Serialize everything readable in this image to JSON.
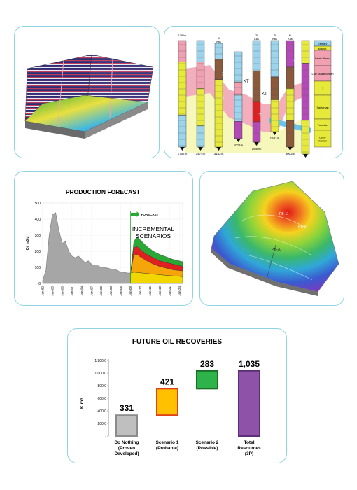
{
  "well_correlation": {
    "well_tops": [
      "1386m",
      "",
      "Ki\nKas",
      "",
      "Ti\nKas",
      "Ti\nKas",
      "Ki\nKas"
    ],
    "well_depths": [
      "1707m",
      "3474m",
      "3142m",
      "1011m",
      "1940m",
      "1581m",
      "3003m",
      "3425m"
    ],
    "kt_labels": [
      "KT",
      "KT"
    ],
    "question": "?",
    "strat_labels": [
      "Tertiary",
      "Maastr.",
      "Santo Blanca",
      "Late Maastrichtian",
      "?",
      "Santonian",
      "Turonian",
      "Ceno-\nmanian"
    ]
  },
  "production": {
    "title": "PRODUCTION FORECAST",
    "ylabel": "Oil m3/d",
    "forecast_label": "FORECAST",
    "incremental_label_1": "INCREMENTAL",
    "incremental_label_2": "SCENARIOS",
    "colors": {
      "history": "#a6a6a6",
      "green": "#2aa835",
      "red": "#e02020",
      "orange": "#f5a50a",
      "yellow": "#f2d600"
    },
    "chart_data": {
      "type": "area",
      "title": "PRODUCTION FORECAST",
      "ylabel": "Oil m3/d",
      "ylim": [
        0,
        500
      ],
      "yticks": [
        "0",
        "100",
        "200",
        "300",
        "400",
        "500"
      ],
      "xticks": [
        "Jan-82",
        "Jan-85",
        "Jan-88",
        "Jan-91",
        "Jan-94",
        "Jan-97",
        "Jan-00",
        "Jan-03",
        "Jan-06",
        "Jan-09",
        "Jan-12",
        "Jan-15",
        "Jan-18",
        "Jan-21",
        "Jan-24"
      ],
      "history": {
        "x": [
          1982,
          1983,
          1984,
          1985,
          1986,
          1987,
          1988,
          1989,
          1990,
          1991,
          1992,
          1993,
          1994,
          1995,
          1996,
          1997,
          1998,
          1999,
          2000,
          2001,
          2002,
          2003,
          2004,
          2005,
          2006,
          2007,
          2008,
          2009
        ],
        "y": [
          20,
          80,
          300,
          430,
          440,
          330,
          250,
          260,
          200,
          170,
          160,
          170,
          150,
          130,
          140,
          120,
          110,
          110,
          100,
          100,
          95,
          90,
          90,
          80,
          70,
          70,
          65,
          65
        ]
      },
      "forecast": {
        "x": [
          2009,
          2010,
          2011,
          2012,
          2014,
          2016,
          2018,
          2020,
          2022,
          2024,
          2025
        ],
        "scenario_total": [
          65,
          260,
          290,
          270,
          230,
          200,
          180,
          165,
          150,
          140,
          135
        ],
        "scenario_red": [
          65,
          220,
          230,
          210,
          180,
          160,
          140,
          130,
          120,
          110,
          105
        ],
        "scenario_orange": [
          65,
          175,
          180,
          165,
          140,
          120,
          105,
          95,
          85,
          80,
          78
        ],
        "base": [
          65,
          70,
          68,
          66,
          62,
          58,
          54,
          50,
          47,
          44,
          42
        ]
      }
    }
  },
  "map3d": {
    "well_labels": [
      "PB-11",
      "PB-20",
      "PB-9"
    ]
  },
  "recoveries": {
    "title": "FUTURE OIL RECOVERIES",
    "ylabel": "K m3",
    "chart_data": {
      "type": "bar",
      "title": "FUTURE OIL RECOVERIES",
      "ylabel": "K m3",
      "ylim": [
        0,
        1200
      ],
      "yticks": [
        "-",
        "200.0",
        "400.0",
        "600.0",
        "800.0",
        "1,000.0",
        "1,200.0"
      ],
      "categories": [
        "Do Nothing (Proven Developed)",
        "Scenario 1 (Probable)",
        "Scenario 2 (Possible)",
        "Total Resources (3P)"
      ],
      "category_lines": [
        [
          "Do Nothing",
          "(Proven",
          "Developed)"
        ],
        [
          "Scenario 1",
          "(Probable)"
        ],
        [
          "Scenario 2",
          "(Possible)"
        ],
        [
          "Total",
          "Resources",
          "(3P)"
        ]
      ],
      "bars": [
        {
          "bottom": 0,
          "top": 331,
          "label": "331",
          "fill": "#bfbfbf",
          "stroke": "#8c8c8c"
        },
        {
          "bottom": 331,
          "top": 752,
          "label": "421",
          "fill": "#ffc000",
          "stroke": "#e0401a"
        },
        {
          "bottom": 752,
          "top": 1035,
          "label": "283",
          "fill": "#2eb24a",
          "stroke": "#1a6e28"
        },
        {
          "bottom": 0,
          "top": 1035,
          "label": "1,035",
          "fill": "#8e52a8",
          "stroke": "#5e2f78"
        }
      ]
    }
  }
}
